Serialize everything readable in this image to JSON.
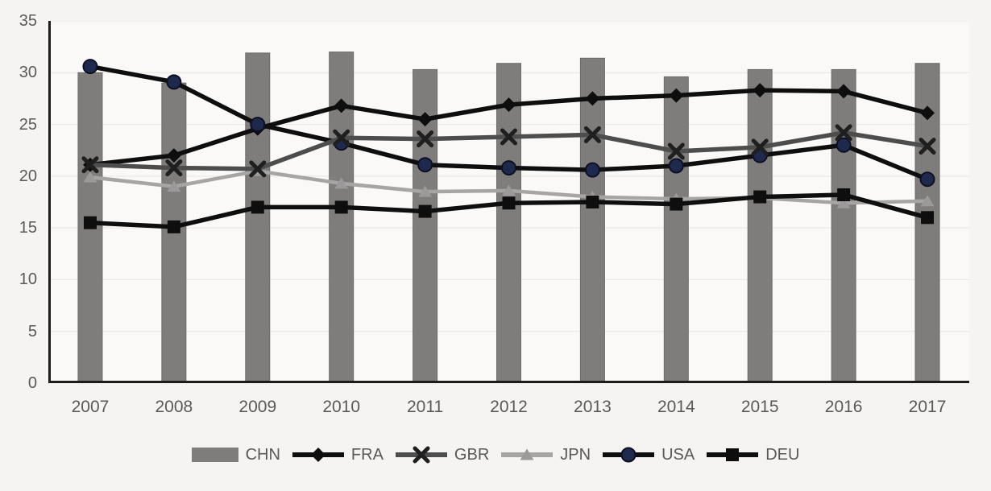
{
  "chart_data": {
    "type": "combo-bar-line",
    "title": "",
    "xlabel": "",
    "ylabel": "",
    "categories": [
      "2007",
      "2008",
      "2009",
      "2010",
      "2011",
      "2012",
      "2013",
      "2014",
      "2015",
      "2016",
      "2017"
    ],
    "ylim": [
      0,
      35
    ],
    "yticks": [
      0,
      5,
      10,
      15,
      20,
      25,
      30,
      35
    ],
    "grid": true,
    "legend_position": "bottom",
    "legend_order": [
      "CHN",
      "FRA",
      "GBR",
      "JPN",
      "USA",
      "DEU"
    ],
    "bar_series": {
      "name": "CHN",
      "color": "#7f7d7b",
      "border_color": "#6d6b69",
      "values": [
        30.0,
        29.0,
        31.9,
        32.0,
        30.3,
        30.9,
        31.4,
        29.6,
        30.3,
        30.3,
        30.9
      ]
    },
    "line_series": [
      {
        "name": "FRA",
        "marker": "diamond",
        "color": "#0e0e0e",
        "marker_color": "#0e0e0e",
        "values": [
          21.1,
          22.0,
          24.6,
          26.8,
          25.5,
          26.9,
          27.5,
          27.8,
          28.3,
          28.2,
          26.1
        ]
      },
      {
        "name": "GBR",
        "marker": "x",
        "color": "#4d4d4d",
        "marker_color": "#1f1f1f",
        "values": [
          21.1,
          20.8,
          20.7,
          23.7,
          23.6,
          23.8,
          24.0,
          22.4,
          22.8,
          24.2,
          22.9
        ]
      },
      {
        "name": "JPN",
        "marker": "triangle",
        "color": "#a7a5a3",
        "marker_color": "#9b9999",
        "values": [
          19.9,
          19.0,
          20.5,
          19.3,
          18.5,
          18.6,
          18.0,
          17.8,
          17.9,
          17.4,
          17.6
        ]
      },
      {
        "name": "USA",
        "marker": "circle",
        "color": "#0e0e0e",
        "marker_color": "#1e2a4d",
        "values": [
          30.6,
          29.1,
          25.0,
          23.2,
          21.1,
          20.8,
          20.6,
          21.0,
          22.0,
          23.0,
          19.7
        ]
      },
      {
        "name": "DEU",
        "marker": "square",
        "color": "#0e0e0e",
        "marker_color": "#0e0e0e",
        "values": [
          15.5,
          15.1,
          17.0,
          17.0,
          16.6,
          17.4,
          17.5,
          17.3,
          18.0,
          18.2,
          16.0
        ]
      }
    ],
    "colors": {
      "background": "#f5f4f2",
      "plot_background": "#faf9f7",
      "axis": "#1c1c1c",
      "grid": "#ebe9e6",
      "tick_text": "#595959",
      "usa_marker_edge": "#0c1022"
    }
  }
}
